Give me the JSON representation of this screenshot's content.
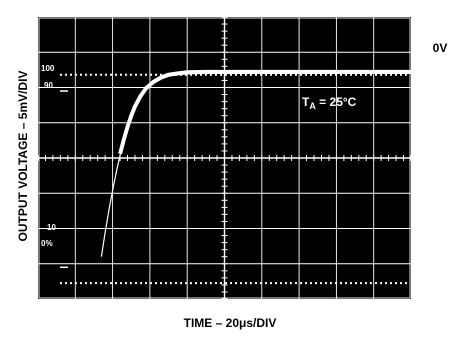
{
  "chart_data": {
    "type": "line",
    "title": "",
    "xlabel": "TIME – 20μs/DIV",
    "ylabel": "OUTPUT VOLTAGE – 5mV/DIV",
    "x_unit": "μs",
    "y_unit": "mV",
    "xlim": [
      0,
      200
    ],
    "ylim": [
      -32,
      8
    ],
    "grid": true,
    "reference_label": "0V",
    "percent_markers": [
      "100",
      "90",
      "10",
      "0%"
    ],
    "annotation": "T_A = 25°C",
    "annotation_main": "T",
    "annotation_sub": "A",
    "annotation_rest": " = 25°C",
    "series": [
      {
        "x": [
          34,
          36,
          38,
          40,
          42,
          44,
          46,
          48,
          50,
          52,
          55,
          58,
          62,
          66,
          70,
          75,
          80,
          90,
          100,
          120,
          140,
          160,
          180,
          200
        ],
        "y": [
          -26.0,
          -22.6,
          -19.4,
          -16.6,
          -14.0,
          -11.6,
          -9.6,
          -7.8,
          -6.2,
          -4.9,
          -3.4,
          -2.3,
          -1.4,
          -0.8,
          -0.4,
          -0.2,
          -0.05,
          0,
          0,
          0,
          0,
          0,
          0,
          0
        ]
      }
    ]
  },
  "colors": {
    "screen": "#000000",
    "grid": "#ffffff",
    "trace": "#ffffff",
    "text": "#000000"
  }
}
